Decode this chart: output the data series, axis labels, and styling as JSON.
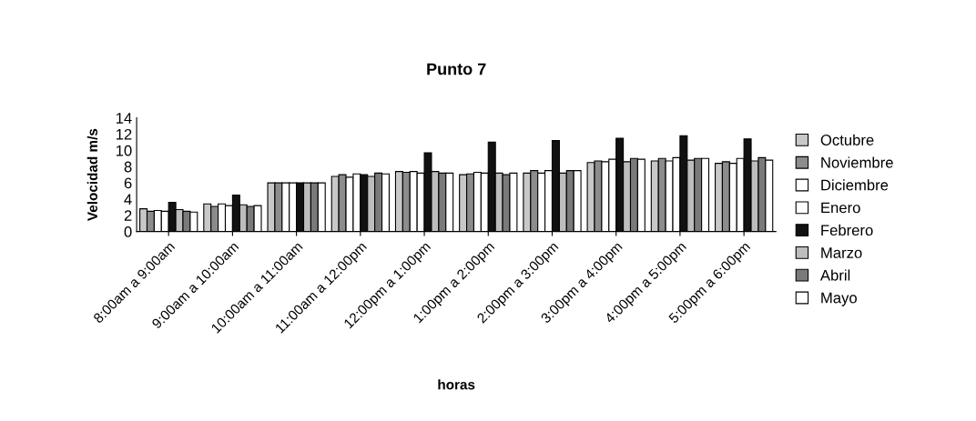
{
  "chart_data": {
    "type": "bar",
    "title": "Punto 7",
    "xlabel": "horas",
    "ylabel": "Velocidad m/s",
    "categories": [
      "8:00am a 9:00am",
      "9:00am a 10:00am",
      "10:00am a 11:00am",
      "11:00am a 12:00pm",
      "12:00pm a 1:00pm",
      "1:00pm a 2:00pm",
      "2:00pm a 3:00pm",
      "3:00pm a 4:00pm",
      "4:00pm a 5:00pm",
      "5:00pm a 6:00pm"
    ],
    "series": [
      {
        "name": "Octubre",
        "color": "#c8c8c8",
        "values": [
          2.8,
          3.4,
          6.0,
          6.8,
          7.4,
          7.0,
          7.2,
          8.5,
          8.7,
          8.4
        ]
      },
      {
        "name": "Noviembre",
        "color": "#8c8c8c",
        "values": [
          2.5,
          3.1,
          6.0,
          7.0,
          7.3,
          7.1,
          7.5,
          8.7,
          9.0,
          8.6
        ]
      },
      {
        "name": "Diciembre",
        "color": "#ffffff",
        "values": [
          2.6,
          3.4,
          6.0,
          6.7,
          7.4,
          7.3,
          7.2,
          8.6,
          8.7,
          8.4
        ]
      },
      {
        "name": "Enero",
        "color": "#ffffff",
        "values": [
          2.5,
          3.2,
          6.0,
          7.1,
          7.2,
          7.2,
          7.5,
          8.9,
          9.1,
          9.0
        ]
      },
      {
        "name": "Febrero",
        "color": "#111111",
        "values": [
          3.6,
          4.5,
          6.0,
          7.0,
          9.7,
          11.0,
          11.2,
          11.5,
          11.8,
          11.4
        ]
      },
      {
        "name": "Marzo",
        "color": "#bdbdbd",
        "values": [
          2.7,
          3.3,
          6.0,
          6.8,
          7.4,
          7.2,
          7.2,
          8.6,
          8.8,
          8.7
        ]
      },
      {
        "name": "Abril",
        "color": "#7a7a7a",
        "values": [
          2.5,
          3.1,
          6.0,
          7.2,
          7.2,
          7.0,
          7.5,
          9.0,
          9.0,
          9.1
        ]
      },
      {
        "name": "Mayo",
        "color": "#ffffff",
        "values": [
          2.4,
          3.2,
          6.0,
          7.1,
          7.2,
          7.2,
          7.5,
          8.9,
          9.0,
          8.8
        ]
      }
    ],
    "ylim": [
      0,
      14
    ],
    "yticks": [
      0,
      2,
      4,
      6,
      8,
      10,
      12,
      14
    ],
    "grid": false,
    "legend": "right"
  }
}
